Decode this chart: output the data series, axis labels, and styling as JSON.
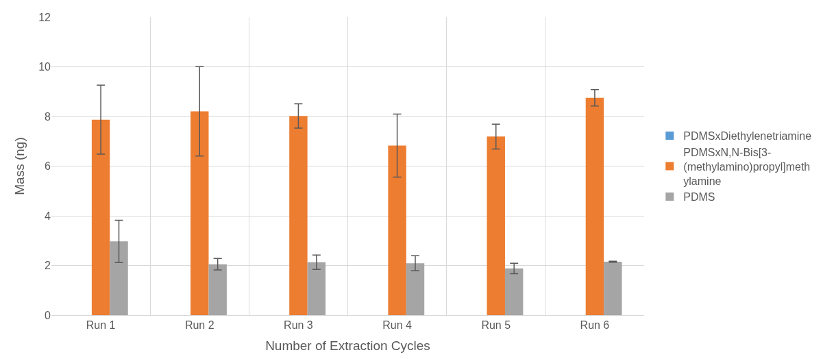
{
  "chart_data": {
    "type": "bar",
    "xlabel": "Number of Extraction Cycles",
    "ylabel": "Mass (ng)",
    "categories": [
      "Run 1",
      "Run 2",
      "Run 3",
      "Run 4",
      "Run 5",
      "Run 6"
    ],
    "series": [
      {
        "name": "PDMSxDiethylenetriamine",
        "color": "#5b9bd5",
        "values": [
          0,
          0,
          0,
          0,
          0,
          0
        ]
      },
      {
        "name": "PDMSxN,N-Bis[3-(methylamino)propyl]methylamine",
        "color": "#ed7d31",
        "values": [
          7.87,
          8.21,
          8.02,
          6.83,
          7.19,
          8.75
        ],
        "errors": [
          1.39,
          1.8,
          0.49,
          1.27,
          0.5,
          0.33
        ]
      },
      {
        "name": "PDMS",
        "color": "#a5a5a5",
        "values": [
          2.97,
          2.05,
          2.13,
          2.09,
          1.88,
          2.15
        ],
        "errors": [
          0.85,
          0.23,
          0.29,
          0.3,
          0.21,
          0.02
        ]
      }
    ],
    "ylim": [
      0,
      12
    ],
    "yticks": [
      0,
      2,
      4,
      6,
      8,
      10,
      12
    ],
    "grid": true,
    "legend": "right"
  }
}
